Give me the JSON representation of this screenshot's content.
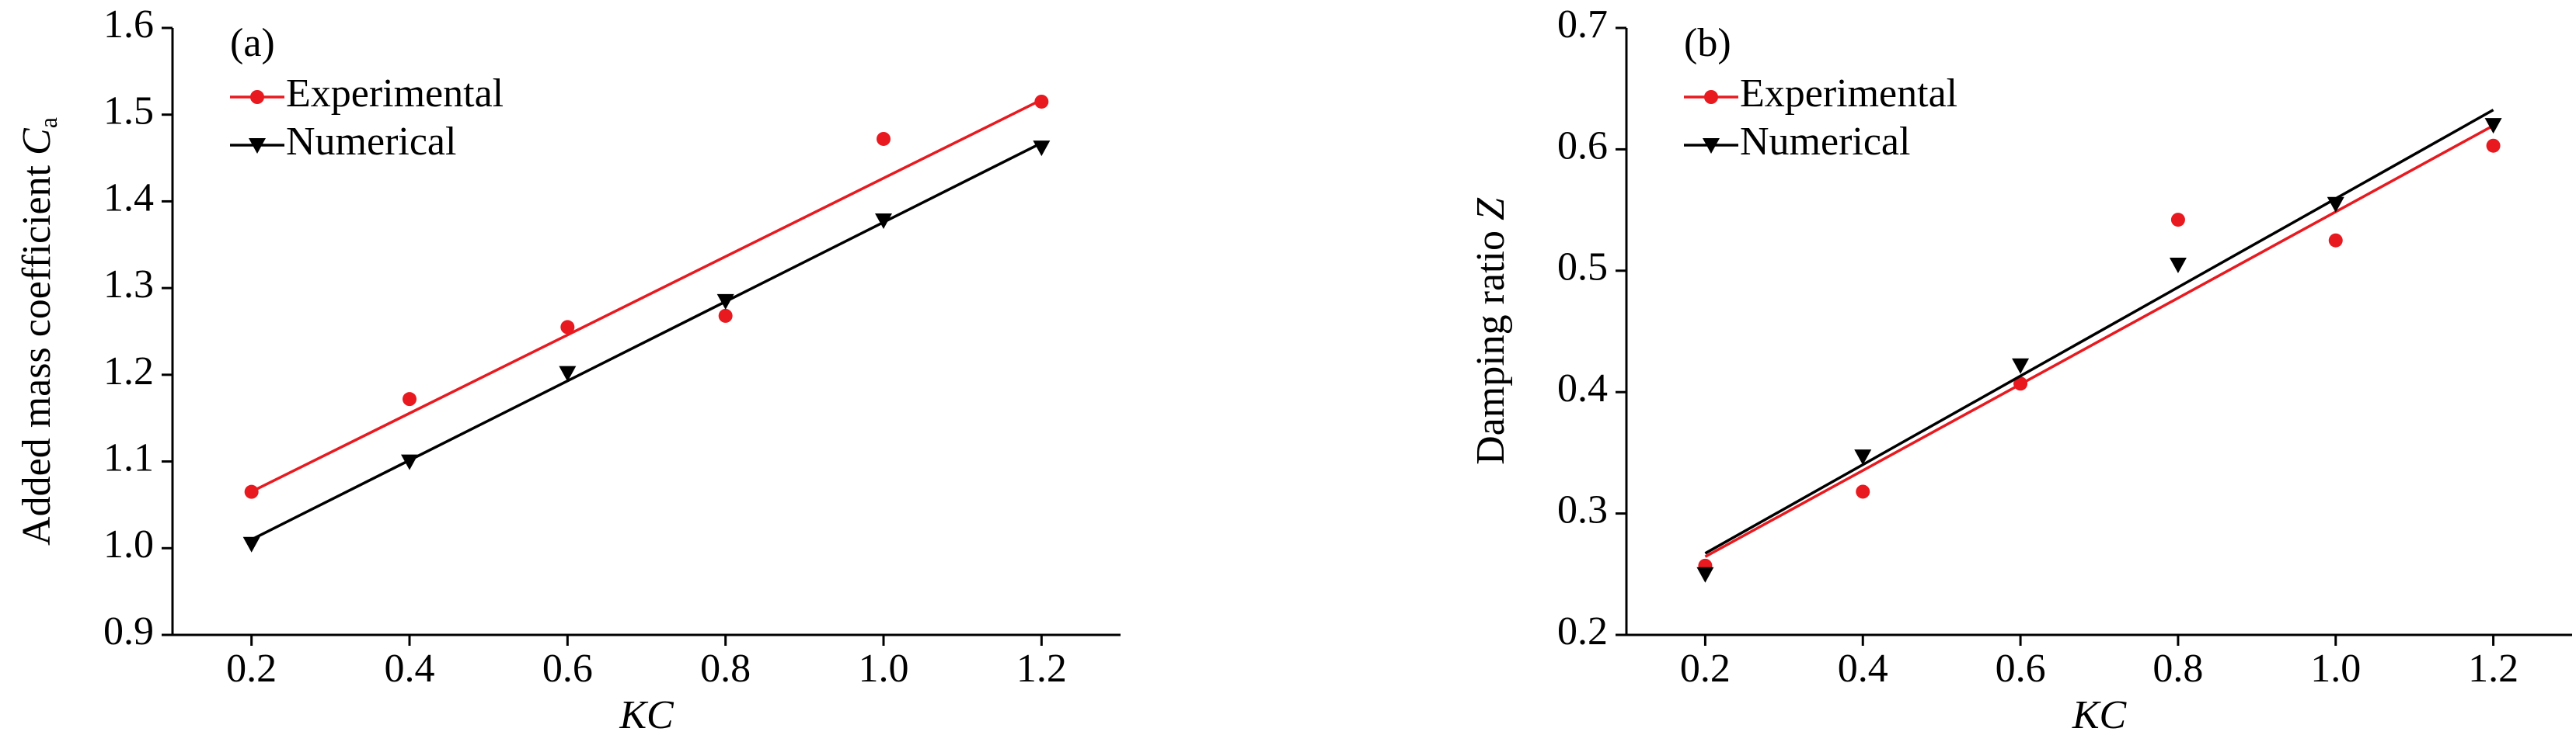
{
  "chart_data": [
    {
      "type": "scatter",
      "panel_label": "(a)",
      "xlabel": "KC",
      "ylabel": "Added mass coefficient",
      "ylabel_symbol": "C",
      "ylabel_subscript": "a",
      "x": [
        0.2,
        0.4,
        0.6,
        0.8,
        1.0,
        1.2
      ],
      "series": [
        {
          "name": "Experimental",
          "color": "#e8191f",
          "marker": "circle",
          "values": [
            1.065,
            1.172,
            1.255,
            1.268,
            1.472,
            1.515
          ]
        },
        {
          "name": "Numerical",
          "color": "#000000",
          "marker": "triangle-down",
          "values": [
            1.005,
            1.1,
            1.202,
            1.285,
            1.378,
            1.462
          ]
        }
      ],
      "trendline": true,
      "legend": "upper left",
      "xlim": [
        0.1,
        1.3
      ],
      "xticks": [
        0.2,
        0.4,
        0.6,
        0.8,
        {
          "value": 1.0,
          "label": "1.0"
        },
        1.2
      ],
      "ylim": [
        0.9,
        1.6
      ],
      "yticks": [
        0.9,
        {
          "value": 1.0,
          "label": "1.0"
        },
        1.1,
        1.2,
        1.3,
        1.4,
        1.5,
        1.6
      ]
    },
    {
      "type": "scatter",
      "panel_label": "(b)",
      "xlabel": "KC",
      "ylabel": "Damping ratio",
      "ylabel_symbol": "Z",
      "x": [
        0.2,
        0.4,
        0.6,
        0.8,
        1.0,
        1.2
      ],
      "series": [
        {
          "name": "Experimental",
          "color": "#e8191f",
          "marker": "circle",
          "values": [
            0.257,
            0.318,
            0.407,
            0.542,
            0.525,
            0.603
          ]
        },
        {
          "name": "Numerical",
          "color": "#000000",
          "marker": "triangle-down",
          "values": [
            0.25,
            0.347,
            0.422,
            0.505,
            0.555,
            0.62
          ]
        }
      ],
      "trendline": true,
      "legend": "upper left",
      "xlim": [
        0.1,
        1.3
      ],
      "xticks": [
        0.2,
        0.4,
        0.6,
        0.8,
        {
          "value": 1.0,
          "label": "1.0"
        },
        1.2
      ],
      "ylim": [
        0.2,
        0.7
      ],
      "yticks": [
        0.2,
        0.3,
        0.4,
        0.5,
        0.6,
        0.7
      ]
    }
  ]
}
